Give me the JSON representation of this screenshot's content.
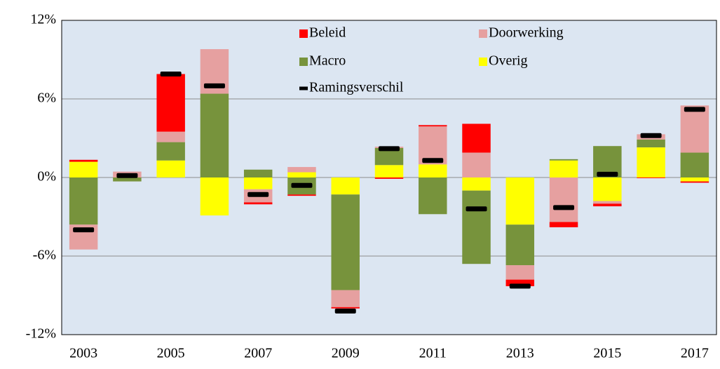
{
  "chart_data": {
    "type": "stacked-bar",
    "categories": [
      "2003",
      null,
      "2005",
      null,
      "2007",
      null,
      "2009",
      null,
      "2011",
      null,
      "2013",
      null,
      "2015",
      null,
      "2017"
    ],
    "series": [
      {
        "name": "Overig",
        "color": "#ffff00",
        "values": [
          1.2,
          0,
          1.3,
          -2.9,
          -0.9,
          0.4,
          -1.3,
          0.95,
          1.0,
          -1.0,
          -3.6,
          1.3,
          -1.8,
          2.3,
          -0.3
        ]
      },
      {
        "name": "Macro",
        "color": "#77933c",
        "values": [
          -3.6,
          -0.3,
          1.4,
          6.4,
          0.6,
          -1.3,
          -7.3,
          1.3,
          -2.8,
          -5.6,
          -3.1,
          0.1,
          2.4,
          0.6,
          1.9
        ]
      },
      {
        "name": "Doorwerking",
        "color": "#e6a0a0",
        "values": [
          -1.9,
          0.45,
          0.8,
          3.4,
          -1.0,
          0.4,
          -1.3,
          0.1,
          2.9,
          1.9,
          -1.1,
          -3.4,
          -0.2,
          0.4,
          3.6
        ]
      },
      {
        "name": "Beleid",
        "color": "#ff0000",
        "values": [
          0.15,
          0,
          4.4,
          0,
          -0.15,
          -0.1,
          -0.1,
          -0.1,
          0.1,
          2.2,
          -0.5,
          -0.4,
          -0.2,
          -0.05,
          -0.1
        ]
      },
      {
        "name": "Ramingsverschil",
        "color": "#000000",
        "type": "marker",
        "values": [
          -4.0,
          0.15,
          7.9,
          7.0,
          -1.3,
          -0.6,
          -10.2,
          2.2,
          1.3,
          -2.4,
          -8.3,
          -2.3,
          0.25,
          3.2,
          5.2
        ]
      }
    ],
    "legend_order": [
      "Beleid",
      "Doorwerking",
      "Macro",
      "Overig",
      "Ramingsverschil"
    ],
    "ylim": [
      -12,
      12
    ],
    "yticks": [
      {
        "value": -12,
        "label": "-12%"
      },
      {
        "value": -6,
        "label": "-6%"
      },
      {
        "value": 0,
        "label": "0%"
      },
      {
        "value": 6,
        "label": "6%"
      },
      {
        "value": 12,
        "label": "12%"
      }
    ],
    "grid": true
  }
}
